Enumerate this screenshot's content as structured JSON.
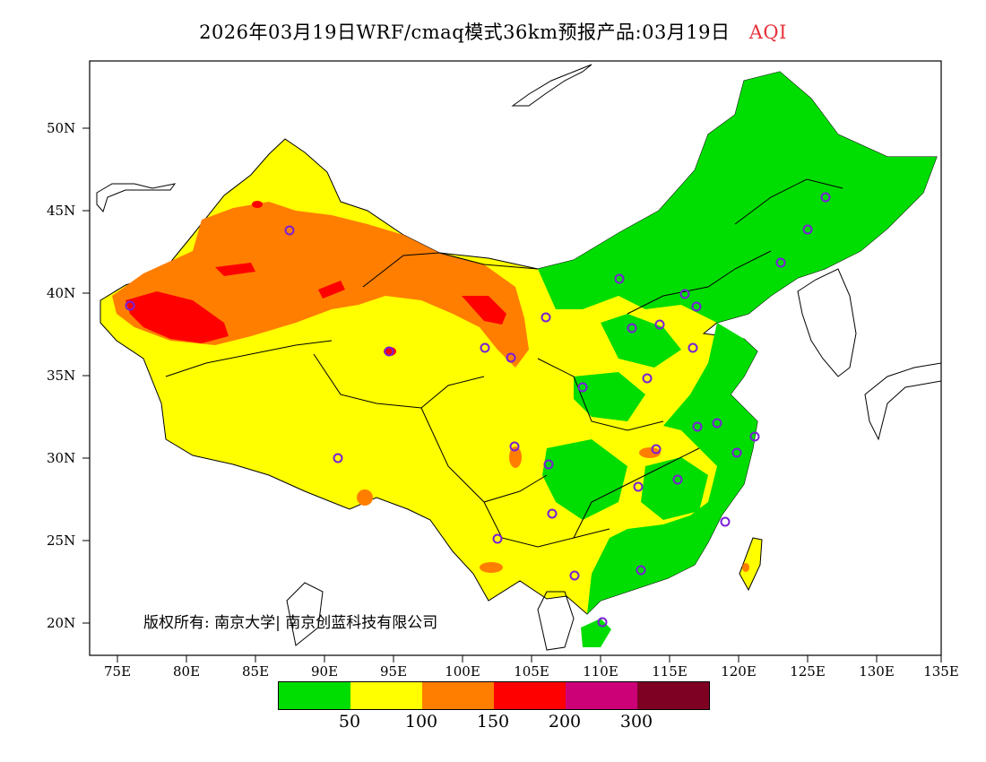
{
  "title": {
    "main": "2026年03月19日WRF/cmaq模式36km预报产品:03月19日",
    "variable": "AQI"
  },
  "axes": {
    "lat_labels": [
      "50N",
      "45N",
      "40N",
      "35N",
      "30N",
      "25N",
      "20N"
    ],
    "lon_labels": [
      "75E",
      "80E",
      "85E",
      "90E",
      "95E",
      "100E",
      "105E",
      "110E",
      "115E",
      "120E",
      "125E",
      "130E",
      "135E"
    ]
  },
  "copyright": "版权所有: 南京大学| 南京创蓝科技有限公司",
  "legend": {
    "colors": [
      "#00dd00",
      "#ffff00",
      "#ff7e00",
      "#ff0000",
      "#cc0077",
      "#7e0023"
    ],
    "labels": [
      "50",
      "100",
      "150",
      "200",
      "300"
    ]
  }
}
